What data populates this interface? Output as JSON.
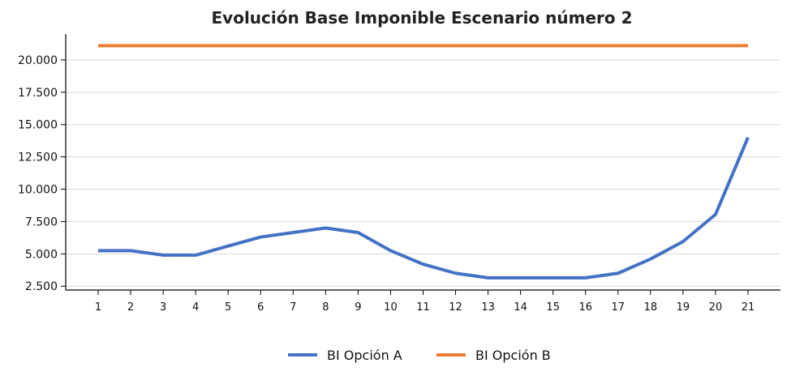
{
  "chart_data": {
    "type": "line",
    "title": "Evolución Base Imponible Escenario número 2",
    "xlabel": "",
    "ylabel": "",
    "categories": [
      "1",
      "2",
      "3",
      "4",
      "5",
      "6",
      "7",
      "8",
      "9",
      "10",
      "11",
      "12",
      "13",
      "14",
      "15",
      "16",
      "17",
      "18",
      "19",
      "20",
      "21"
    ],
    "series": [
      {
        "name": "BI Opción A",
        "color": "#4472C4",
        "values": [
          5250,
          5250,
          4900,
          4900,
          5600,
          6300,
          6650,
          7000,
          6650,
          5250,
          4200,
          3500,
          3150,
          3150,
          3150,
          3150,
          3500,
          4600,
          5950,
          8050,
          14000
        ]
      },
      {
        "name": "BI Opción B",
        "color": "#ED7D31",
        "values": [
          21100,
          21100,
          21100,
          21100,
          21100,
          21100,
          21100,
          21100,
          21100,
          21100,
          21100,
          21100,
          21100,
          21100,
          21100,
          21100,
          21100,
          21100,
          21100,
          21100,
          21100
        ]
      }
    ],
    "yticks": [
      2500,
      5000,
      7500,
      10000,
      12500,
      15000,
      17500,
      20000
    ],
    "ytick_labels": [
      "2.500",
      "5.000",
      "7.500",
      "10.000",
      "12.500",
      "15.000",
      "17.500",
      "20.000"
    ],
    "ylim": [
      2200,
      22000
    ],
    "grid": "horizontal",
    "legend": "bottom-center"
  }
}
